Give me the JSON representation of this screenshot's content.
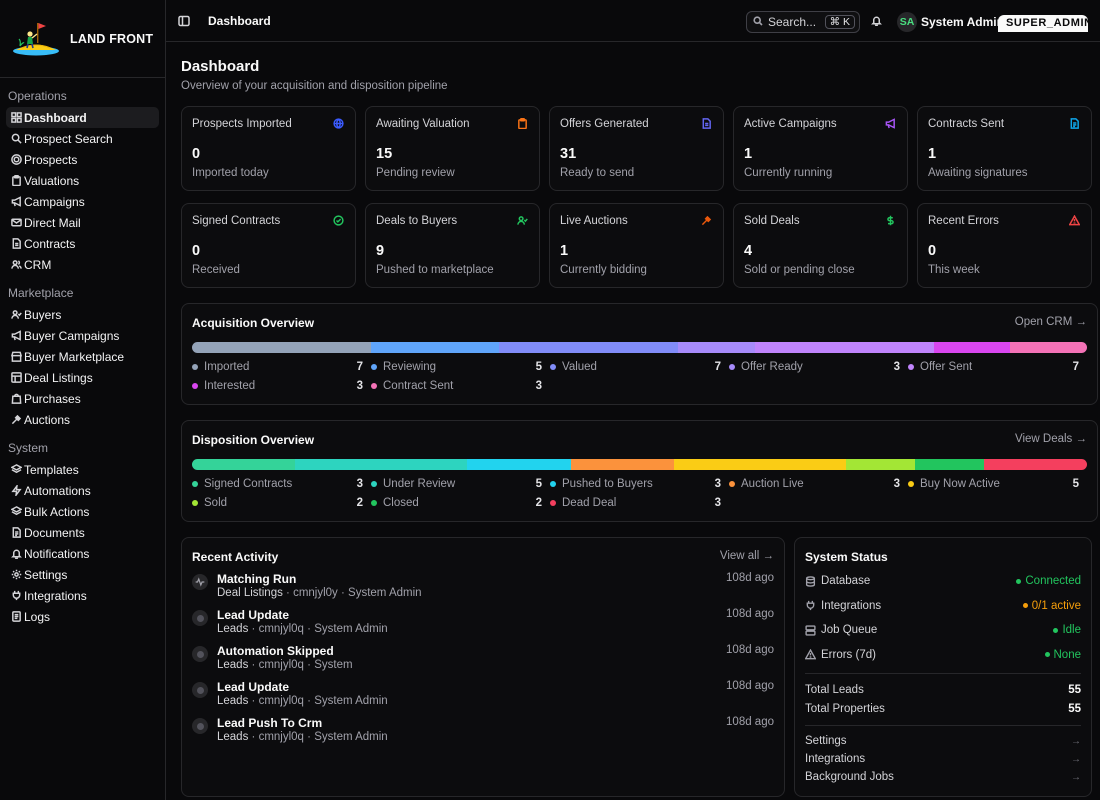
{
  "brand": {
    "name": "LAND FRONT"
  },
  "topbar": {
    "breadcrumb": "Dashboard",
    "search_placeholder": "Search...",
    "search_shortcut": "⌘ K",
    "user_initials": "SA",
    "user_name": "System Admin",
    "user_role": "SUPER_ADMIN"
  },
  "sidebar": {
    "groups": [
      {
        "heading": "Operations",
        "items": [
          "Dashboard",
          "Prospect Search",
          "Prospects",
          "Valuations",
          "Campaigns",
          "Direct Mail",
          "Contracts",
          "CRM"
        ]
      },
      {
        "heading": "Marketplace",
        "items": [
          "Buyers",
          "Buyer Campaigns",
          "Buyer Marketplace",
          "Deal Listings",
          "Purchases",
          "Auctions"
        ]
      },
      {
        "heading": "System",
        "items": [
          "Templates",
          "Automations",
          "Bulk Actions",
          "Documents",
          "Notifications",
          "Settings",
          "Integrations",
          "Logs"
        ]
      }
    ]
  },
  "page": {
    "title": "Dashboard",
    "subtitle": "Overview of your acquisition and disposition pipeline"
  },
  "stats": [
    {
      "label": "Prospects Imported",
      "value": "0",
      "sub": "Imported today",
      "icon": "globe-icon",
      "color": "#3b5bff"
    },
    {
      "label": "Awaiting Valuation",
      "value": "15",
      "sub": "Pending review",
      "icon": "clipboard-icon",
      "color": "#f97316"
    },
    {
      "label": "Offers Generated",
      "value": "31",
      "sub": "Ready to send",
      "icon": "file-icon",
      "color": "#6366f1"
    },
    {
      "label": "Active Campaigns",
      "value": "1",
      "sub": "Currently running",
      "icon": "megaphone-icon",
      "color": "#a855f7"
    },
    {
      "label": "Contracts Sent",
      "value": "1",
      "sub": "Awaiting signatures",
      "icon": "file-text-icon",
      "color": "#0ea5e9"
    },
    {
      "label": "Signed Contracts",
      "value": "0",
      "sub": "Received",
      "icon": "check-circle-icon",
      "color": "#22c55e"
    },
    {
      "label": "Deals to Buyers",
      "value": "9",
      "sub": "Pushed to marketplace",
      "icon": "user-check-icon",
      "color": "#22c55e"
    },
    {
      "label": "Live Auctions",
      "value": "1",
      "sub": "Currently bidding",
      "icon": "gavel-icon",
      "color": "#ea580c"
    },
    {
      "label": "Sold Deals",
      "value": "4",
      "sub": "Sold or pending close",
      "icon": "dollar-icon",
      "color": "#22c55e"
    },
    {
      "label": "Recent Errors",
      "value": "0",
      "sub": "This week",
      "icon": "alert-triangle-icon",
      "color": "#ef4444"
    }
  ],
  "acquisition": {
    "title": "Acquisition Overview",
    "link": "Open CRM →",
    "segments": [
      {
        "label": "Imported",
        "value": 7,
        "color": "#94a3b8"
      },
      {
        "label": "Reviewing",
        "value": 5,
        "color": "#60a5fa"
      },
      {
        "label": "Valued",
        "value": 7,
        "color": "#818cf8"
      },
      {
        "label": "Offer Ready",
        "value": 3,
        "color": "#a78bfa"
      },
      {
        "label": "Offer Sent",
        "value": 7,
        "color": "#c084fc"
      },
      {
        "label": "Interested",
        "value": 3,
        "color": "#d946ef"
      },
      {
        "label": "Contract Sent",
        "value": 3,
        "color": "#f472b6"
      }
    ]
  },
  "disposition": {
    "title": "Disposition Overview",
    "link": "View Deals →",
    "segments": [
      {
        "label": "Signed Contracts",
        "value": 3,
        "color": "#34d399"
      },
      {
        "label": "Under Review",
        "value": 5,
        "color": "#2dd4bf"
      },
      {
        "label": "Pushed to Buyers",
        "value": 3,
        "color": "#22d3ee"
      },
      {
        "label": "Auction Live",
        "value": 3,
        "color": "#fb923c"
      },
      {
        "label": "Buy Now Active",
        "value": 5,
        "color": "#facc15"
      },
      {
        "label": "Sold",
        "value": 2,
        "color": "#a3e635"
      },
      {
        "label": "Closed",
        "value": 2,
        "color": "#22c55e"
      },
      {
        "label": "Dead Deal",
        "value": 3,
        "color": "#f43f5e"
      }
    ]
  },
  "activity": {
    "title": "Recent Activity",
    "link": "View all →",
    "items": [
      {
        "title": "Matching Run",
        "entity": "Deal Listings",
        "id": "cmnjyl0y",
        "actor": "System Admin",
        "time": "108d ago",
        "icon": "activity-icon"
      },
      {
        "title": "Lead Update",
        "entity": "Leads",
        "id": "cmnjyl0q",
        "actor": "System Admin",
        "time": "108d ago",
        "icon": "dot-icon"
      },
      {
        "title": "Automation Skipped",
        "entity": "Leads",
        "id": "cmnjyl0q",
        "actor": "System",
        "time": "108d ago",
        "icon": "dot-icon"
      },
      {
        "title": "Lead Update",
        "entity": "Leads",
        "id": "cmnjyl0q",
        "actor": "System Admin",
        "time": "108d ago",
        "icon": "dot-icon"
      },
      {
        "title": "Lead Push To Crm",
        "entity": "Leads",
        "id": "cmnjyl0q",
        "actor": "System Admin",
        "time": "108d ago",
        "icon": "dot-icon"
      }
    ]
  },
  "system_status": {
    "title": "System Status",
    "checks": [
      {
        "label": "Database",
        "value": "Connected",
        "color": "#22c55e",
        "icon": "database-icon"
      },
      {
        "label": "Integrations",
        "value": "0/1 active",
        "color": "#f59e0b",
        "icon": "plug-icon"
      },
      {
        "label": "Job Queue",
        "value": "Idle",
        "color": "#22c55e",
        "icon": "server-icon"
      },
      {
        "label": "Errors (7d)",
        "value": "None",
        "color": "#22c55e",
        "icon": "alert-triangle-icon"
      }
    ],
    "totals": [
      {
        "label": "Total Leads",
        "value": "55"
      },
      {
        "label": "Total Properties",
        "value": "55"
      }
    ],
    "links": [
      "Settings",
      "Integrations",
      "Background Jobs"
    ]
  }
}
